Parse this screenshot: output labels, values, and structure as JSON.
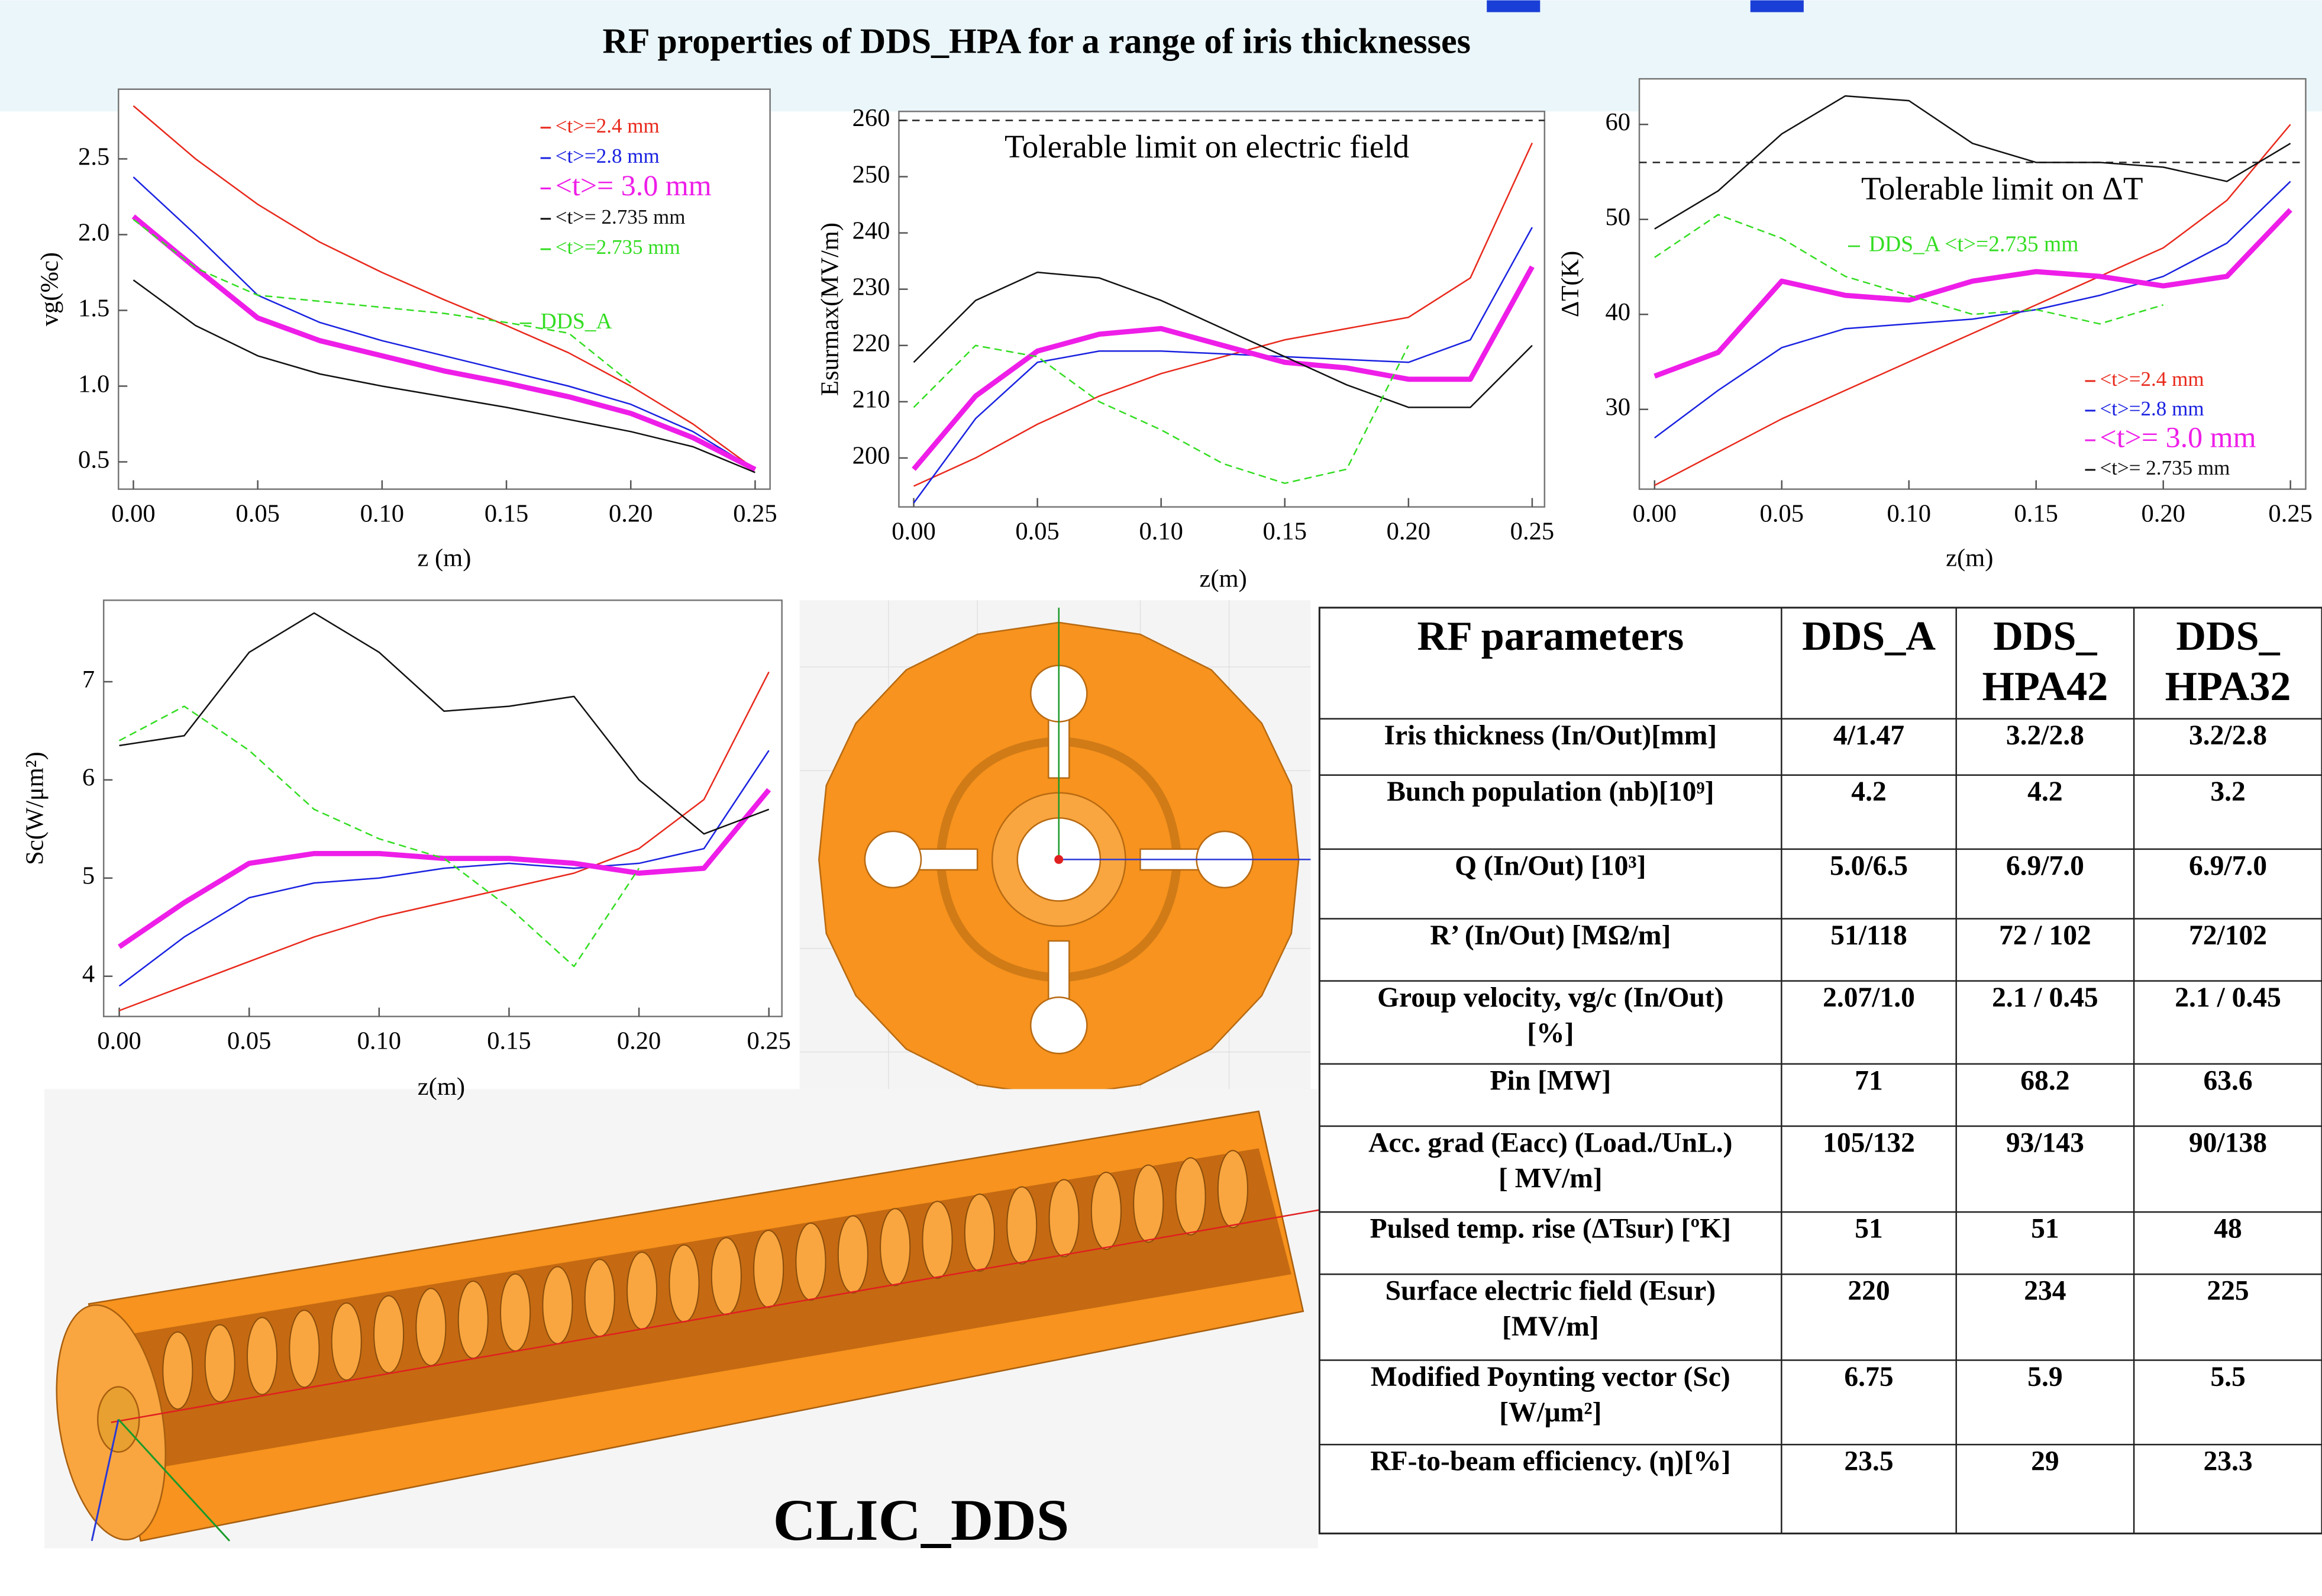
{
  "title": "RF properties of DDS_HPA for a range of iris thicknesses",
  "caption": "CLIC_DDS",
  "chart_data": [
    {
      "type": "line",
      "x_label": "z (m)",
      "y_label": "vg(%c)",
      "x": [
        0,
        0.025,
        0.05,
        0.075,
        0.1,
        0.125,
        0.15,
        0.175,
        0.2,
        0.225,
        0.25
      ],
      "xlim": [
        -0.006,
        0.256
      ],
      "ylim": [
        0.32,
        2.96
      ],
      "xticks": [
        {
          "value": 0,
          "label": "0.00"
        },
        {
          "value": 0.05,
          "label": "0.05"
        },
        {
          "value": 0.1,
          "label": "0.10"
        },
        {
          "value": 0.15,
          "label": "0.15"
        },
        {
          "value": 0.2,
          "label": "0.20"
        },
        {
          "value": 0.25,
          "label": "0.25"
        }
      ],
      "yticks": [
        0.5,
        {
          "value": 1,
          "label": "1.0"
        },
        1.5,
        {
          "value": 2,
          "label": "2.0"
        },
        2.5
      ],
      "legend": "top-right",
      "grid": false,
      "annotation": "DDS_A",
      "series": [
        {
          "name": "<t>=2.4 mm",
          "color": "#e8291c",
          "line_width": 1,
          "values": [
            2.85,
            2.5,
            2.2,
            1.95,
            1.75,
            1.57,
            1.4,
            1.22,
            1.0,
            0.75,
            0.45
          ]
        },
        {
          "name": "<t>=2.8 mm",
          "color": "#1a22e0",
          "line_width": 1,
          "values": [
            2.38,
            2.0,
            1.6,
            1.42,
            1.3,
            1.2,
            1.1,
            1.0,
            0.88,
            0.7,
            0.45
          ]
        },
        {
          "name": "<t>= 3.0 mm",
          "color": "#ee1ee8",
          "line_width": 3.5,
          "values": [
            2.12,
            1.78,
            1.45,
            1.3,
            1.2,
            1.1,
            1.02,
            0.93,
            0.82,
            0.66,
            0.45
          ]
        },
        {
          "name": "<t>= 2.735 mm",
          "color": "#111111",
          "line_width": 1,
          "values": [
            1.7,
            1.4,
            1.2,
            1.08,
            1.0,
            0.93,
            0.86,
            0.78,
            0.7,
            0.6,
            0.43
          ]
        },
        {
          "name": "<t>=2.735 mm",
          "color": "#33dd22",
          "line_width": 1,
          "dashed": true,
          "values": [
            2.1,
            1.78,
            1.6,
            1.56,
            1.52,
            1.48,
            1.42,
            1.35,
            1.02,
            null,
            null
          ]
        }
      ]
    },
    {
      "type": "line",
      "x_label": "z(m)",
      "y_label": "Esurmax(MV/m)",
      "x": [
        0,
        0.025,
        0.05,
        0.075,
        0.1,
        0.125,
        0.15,
        0.175,
        0.2,
        0.225,
        0.25
      ],
      "xlim": [
        -0.006,
        0.255
      ],
      "ylim": [
        191.3,
        261.6
      ],
      "xticks": [
        {
          "value": 0,
          "label": "0.00"
        },
        {
          "value": 0.05,
          "label": "0.05"
        },
        {
          "value": 0.1,
          "label": "0.10"
        },
        {
          "value": 0.15,
          "label": "0.15"
        },
        {
          "value": 0.2,
          "label": "0.20"
        },
        {
          "value": 0.25,
          "label": "0.25"
        }
      ],
      "yticks": [
        200,
        210,
        220,
        230,
        240,
        250,
        260
      ],
      "grid": false,
      "limit": {
        "value": 260,
        "label": "Tolerable limit on electric field"
      },
      "series": [
        {
          "color": "#e8291c",
          "line_width": 1,
          "values": [
            195,
            200,
            206,
            211,
            215,
            218,
            221,
            223,
            225,
            232,
            256
          ]
        },
        {
          "color": "#1a22e0",
          "line_width": 1,
          "values": [
            192,
            207,
            217,
            219,
            219,
            218.5,
            218,
            217.5,
            217,
            221,
            241
          ]
        },
        {
          "color": "#ee1ee8",
          "line_width": 3.5,
          "values": [
            198,
            211,
            219,
            222,
            223,
            220,
            217,
            216,
            214,
            214,
            234
          ]
        },
        {
          "color": "#111111",
          "line_width": 1,
          "values": [
            217,
            228,
            233,
            232,
            228,
            223,
            218,
            213,
            209,
            209,
            220
          ]
        },
        {
          "color": "#33dd22",
          "line_width": 1,
          "dashed": true,
          "values": [
            209,
            220,
            218,
            210,
            205,
            199,
            195.5,
            198,
            220,
            null,
            null
          ]
        }
      ]
    },
    {
      "type": "line",
      "x_label": "z(m)",
      "y_label": "ΔT(K)",
      "x": [
        0,
        0.025,
        0.05,
        0.075,
        0.1,
        0.125,
        0.15,
        0.175,
        0.2,
        0.225,
        0.25
      ],
      "xlim": [
        -0.006,
        0.256
      ],
      "ylim": [
        21.6,
        64.8
      ],
      "xticks": [
        {
          "value": 0,
          "label": "0.00"
        },
        {
          "value": 0.05,
          "label": "0.05"
        },
        {
          "value": 0.1,
          "label": "0.10"
        },
        {
          "value": 0.15,
          "label": "0.15"
        },
        {
          "value": 0.2,
          "label": "0.20"
        },
        {
          "value": 0.25,
          "label": "0.25"
        }
      ],
      "yticks": [
        30,
        40,
        50,
        60
      ],
      "legend": "bottom-right",
      "grid": false,
      "limit": {
        "value": 56,
        "label": "Tolerable limit on ΔT"
      },
      "annotation": "DDS_A <t>=2.735 mm",
      "series": [
        {
          "name": "<t>=2.4 mm",
          "color": "#e8291c",
          "line_width": 1,
          "values": [
            22,
            25.5,
            29,
            32,
            35,
            38,
            41,
            44,
            47,
            52,
            60
          ]
        },
        {
          "name": "<t>=2.8 mm",
          "color": "#1a22e0",
          "line_width": 1,
          "values": [
            27,
            32,
            36.5,
            38.5,
            39,
            39.5,
            40.5,
            42,
            44,
            47.5,
            54
          ]
        },
        {
          "name": "<t>= 3.0 mm",
          "color": "#ee1ee8",
          "line_width": 3.5,
          "values": [
            33.5,
            36,
            43.5,
            42,
            41.5,
            43.5,
            44.5,
            44,
            43,
            44,
            51
          ]
        },
        {
          "name": "<t>= 2.735 mm",
          "color": "#111111",
          "line_width": 1,
          "values": [
            49,
            53,
            59,
            63,
            62.5,
            58,
            56,
            56,
            55.5,
            54,
            58
          ]
        },
        {
          "color": "#33dd22",
          "line_width": 1,
          "dashed": true,
          "values": [
            46,
            50.5,
            48,
            44,
            42,
            40,
            40.5,
            39,
            41,
            null,
            null
          ]
        }
      ]
    },
    {
      "type": "line",
      "x_label": "z(m)",
      "y_label": "Sc(W/μm²)",
      "x": [
        0,
        0.025,
        0.05,
        0.075,
        0.1,
        0.125,
        0.15,
        0.175,
        0.2,
        0.225,
        0.25
      ],
      "xlim": [
        -0.006,
        0.255
      ],
      "ylim": [
        3.59,
        7.83
      ],
      "xticks": [
        {
          "value": 0,
          "label": "0.00"
        },
        {
          "value": 0.05,
          "label": "0.05"
        },
        {
          "value": 0.1,
          "label": "0.10"
        },
        {
          "value": 0.15,
          "label": "0.15"
        },
        {
          "value": 0.2,
          "label": "0.20"
        },
        {
          "value": 0.25,
          "label": "0.25"
        }
      ],
      "yticks": [
        4,
        5,
        6,
        7
      ],
      "grid": false,
      "series": [
        {
          "color": "#e8291c",
          "line_width": 1,
          "values": [
            3.65,
            3.9,
            4.15,
            4.4,
            4.6,
            4.75,
            4.9,
            5.05,
            5.3,
            5.8,
            7.1
          ]
        },
        {
          "color": "#1a22e0",
          "line_width": 1,
          "values": [
            3.9,
            4.4,
            4.8,
            4.95,
            5.0,
            5.1,
            5.15,
            5.1,
            5.15,
            5.3,
            6.3
          ]
        },
        {
          "color": "#ee1ee8",
          "line_width": 3.5,
          "values": [
            4.3,
            4.75,
            5.15,
            5.25,
            5.25,
            5.2,
            5.2,
            5.15,
            5.05,
            5.1,
            5.9
          ]
        },
        {
          "color": "#111111",
          "line_width": 1,
          "values": [
            6.35,
            6.45,
            7.3,
            7.7,
            7.3,
            6.7,
            6.75,
            6.85,
            6.0,
            5.45,
            5.7
          ]
        },
        {
          "color": "#33dd22",
          "line_width": 1,
          "dashed": true,
          "values": [
            6.4,
            6.75,
            6.3,
            5.7,
            5.4,
            5.2,
            4.7,
            4.1,
            5.1,
            null,
            null
          ]
        }
      ]
    }
  ],
  "table": {
    "header": [
      [
        "RF parameters"
      ],
      [
        "DDS_A"
      ],
      [
        "DDS_",
        "HPA42"
      ],
      [
        "DDS_",
        "HPA32"
      ]
    ],
    "rows": [
      [
        [
          "Iris thickness (In/Out)[mm]"
        ],
        "4/1.47",
        "3.2/2.8",
        "3.2/2.8"
      ],
      [
        [
          "Bunch population (nb)[10⁹]"
        ],
        "4.2",
        "4.2",
        "3.2"
      ],
      [
        [
          "Q (In/Out) [10³]"
        ],
        "5.0/6.5",
        "6.9/7.0",
        "6.9/7.0"
      ],
      [
        [
          "R’ (In/Out) [MΩ/m]"
        ],
        "51/118",
        "72 / 102",
        "72/102"
      ],
      [
        [
          "Group velocity, vg/c (In/Out)",
          "[%]"
        ],
        "2.07/1.0",
        "2.1 / 0.45",
        "2.1 / 0.45"
      ],
      [
        [
          "Pin [MW]"
        ],
        "71",
        "68.2",
        "63.6"
      ],
      [
        [
          "Acc. grad  (Eacc) (Load./UnL.)",
          "[ MV/m]"
        ],
        "105/132",
        "93/143",
        "90/138"
      ],
      [
        [
          "Pulsed temp. rise (ΔTsur) [ºK]"
        ],
        "51",
        "51",
        "48"
      ],
      [
        [
          "Surface electric field  (Esur)",
          "[MV/m]"
        ],
        "220",
        "234",
        "225"
      ],
      [
        [
          "Modified Poynting vector (Sc)",
          "[W/μm²]"
        ],
        "6.75",
        "5.9",
        "5.5"
      ],
      [
        [
          "RF-to-beam efficiency. (η)[%]"
        ],
        "23.5",
        "29",
        "23.3"
      ]
    ]
  }
}
